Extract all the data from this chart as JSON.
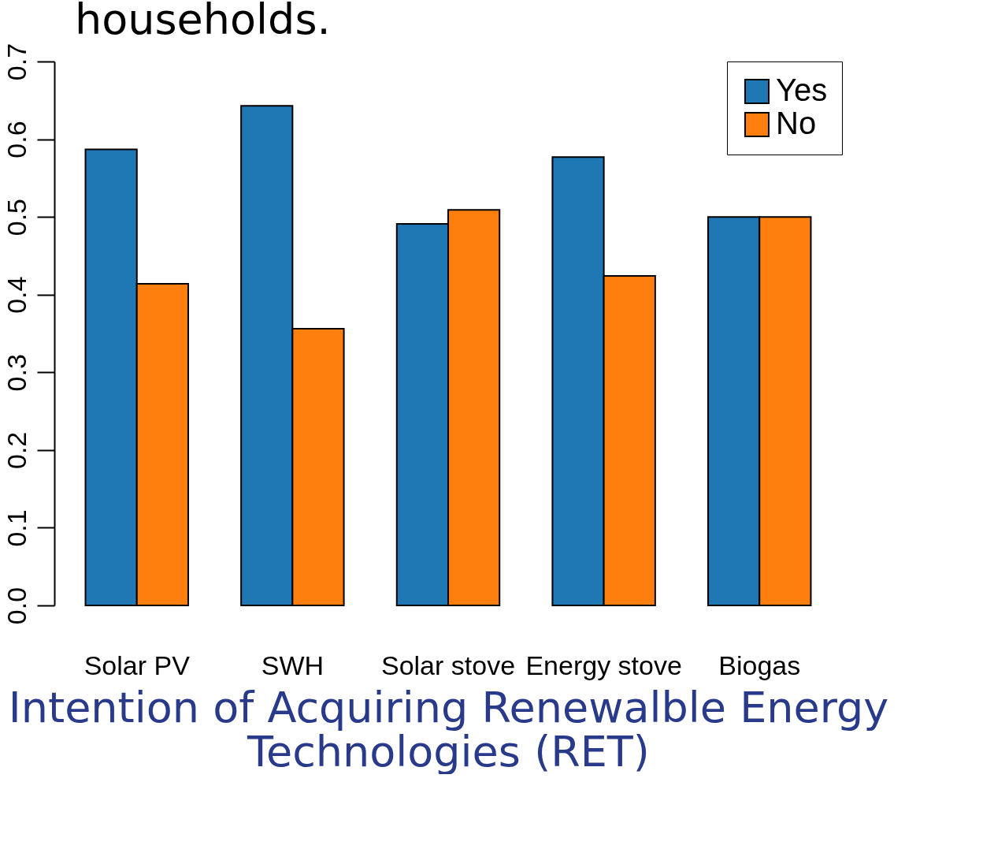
{
  "chart_data": {
    "type": "bar",
    "title": "households.",
    "categories": [
      "Solar PV",
      "SWH",
      "Solar stove",
      "Energy stove",
      "Biogas"
    ],
    "series": [
      {
        "name": "Yes",
        "color": "#1f77b4",
        "values": [
          0.587,
          0.643,
          0.491,
          0.577,
          0.5
        ]
      },
      {
        "name": "No",
        "color": "#ff7f0e",
        "values": [
          0.414,
          0.356,
          0.509,
          0.424,
          0.5
        ]
      }
    ],
    "xlabel": "Intention of Acquiring Renewalble Energy Technologies (RET)",
    "ylim": [
      0,
      0.7
    ],
    "yticks": [
      {
        "value": 0,
        "label": "0.0"
      },
      0.1,
      0.2,
      0.3,
      0.4,
      0.5,
      0.6,
      0.7
    ],
    "grid": false,
    "legend": "top right"
  }
}
